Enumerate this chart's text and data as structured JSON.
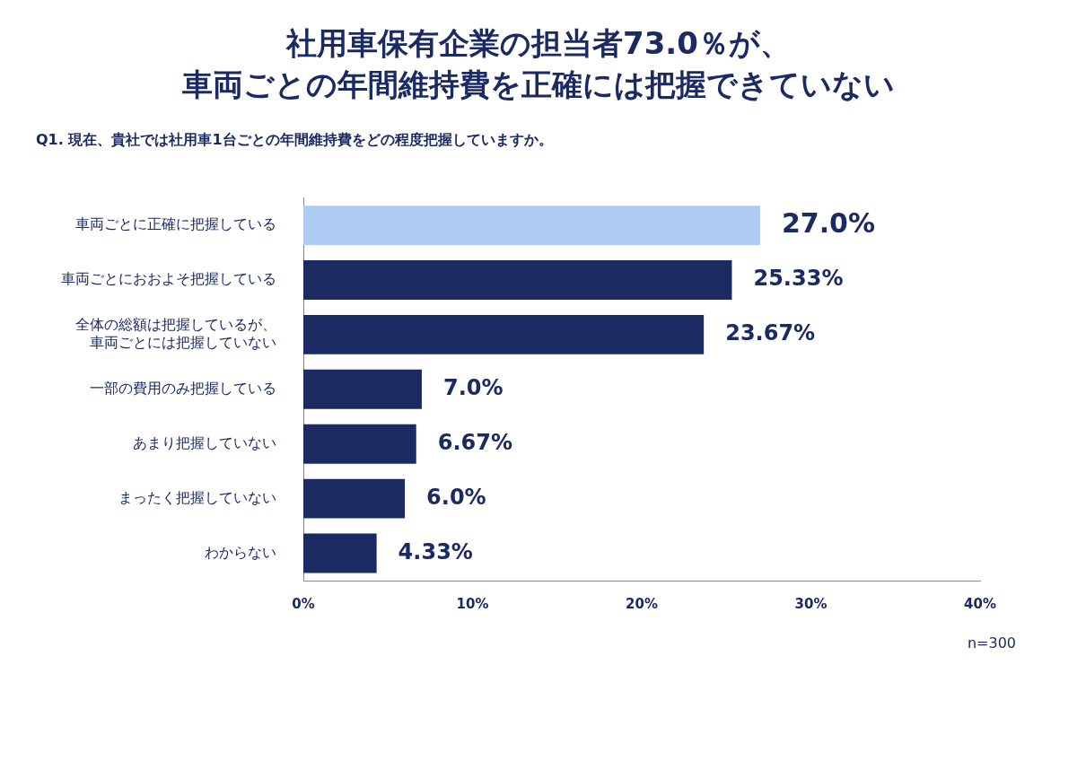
{
  "chart_data": {
    "type": "bar",
    "orientation": "horizontal",
    "title": "社用車保有企業の担当者73.0％が、車両ごとの年間維持費を正確には把握できていない",
    "subtitle": "Q1. 現在、貴社では社用車1台ごとの年間維持費をどの程度把握していますか。",
    "categories": [
      "車両ごとに正確に把握している",
      "車両ごとにおおよそ把握している",
      "全体の総額は把握しているが、車両ごとには把握していない",
      "一部の費用のみ把握している",
      "あまり把握していない",
      "まったく把握していない",
      "わからない"
    ],
    "values": [
      27.0,
      25.33,
      23.67,
      7.0,
      6.67,
      6.0,
      4.33
    ],
    "colors": [
      "#aecbf3",
      "#1b2a63",
      "#1b2a63",
      "#1b2a63",
      "#1b2a63",
      "#1b2a63",
      "#1b2a63"
    ],
    "value_labels": [
      "27.0%",
      "25.33%",
      "23.67%",
      "7.0%",
      "6.67%",
      "6.0%",
      "4.33%"
    ],
    "xlim": [
      0,
      40
    ],
    "xticks": [
      {
        "value": 0,
        "label": "0%"
      },
      {
        "value": 10,
        "label": "10%"
      },
      {
        "value": 20,
        "label": "20%"
      },
      {
        "value": 30,
        "label": "30%"
      },
      {
        "value": 40,
        "label": "40%"
      }
    ],
    "grid": false,
    "legend": false,
    "annotations": [
      "n=300"
    ]
  }
}
